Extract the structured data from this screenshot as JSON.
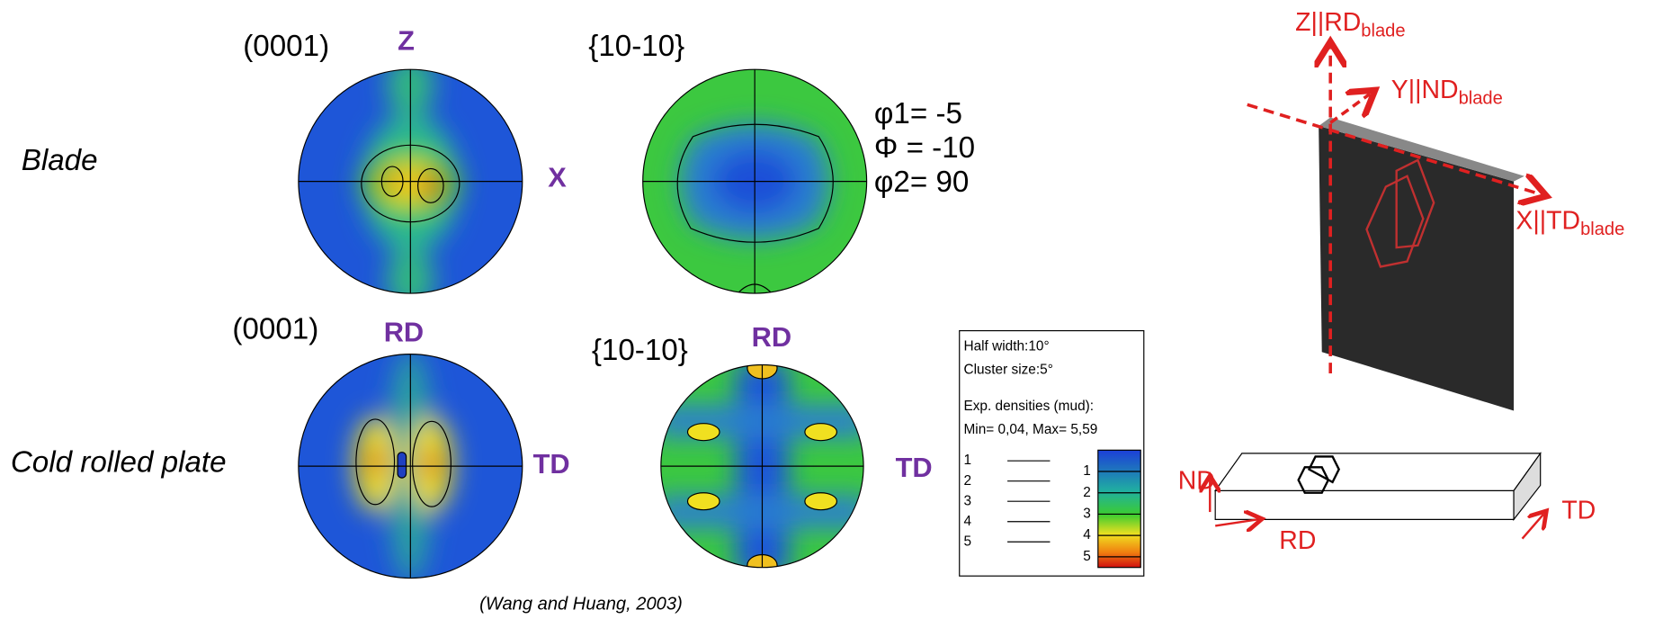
{
  "row1": {
    "label": "Blade",
    "pf1": {
      "title": "(0001)",
      "top": "Z",
      "right": "X"
    },
    "pf2": {
      "title": "{10-10}",
      "angles": [
        "φ1= -5",
        "Φ = -10",
        "φ2= 90"
      ]
    }
  },
  "row2": {
    "label": "Cold rolled plate",
    "pf1": {
      "title": "(0001)",
      "top": "RD",
      "right": "TD"
    },
    "pf2": {
      "title": "{10-10}",
      "top": "RD",
      "right": "TD"
    }
  },
  "legend": {
    "lines": [
      "Half width:10°",
      "Cluster size:5°",
      "Exp. densities (mud):",
      "Min= 0,04, Max= 5,59"
    ],
    "contour_levels": [
      1,
      2,
      3,
      4,
      5
    ],
    "color_levels": [
      1,
      2,
      3,
      4,
      5
    ]
  },
  "citation": "(Wang and Huang, 2003)",
  "blade_axes": [
    {
      "main": "Z||RD",
      "sub": "blade"
    },
    {
      "main": "Y||ND",
      "sub": "blade"
    },
    {
      "main": "X||TD",
      "sub": "blade"
    }
  ],
  "plate_axes": [
    "ND",
    "RD",
    "TD"
  ]
}
